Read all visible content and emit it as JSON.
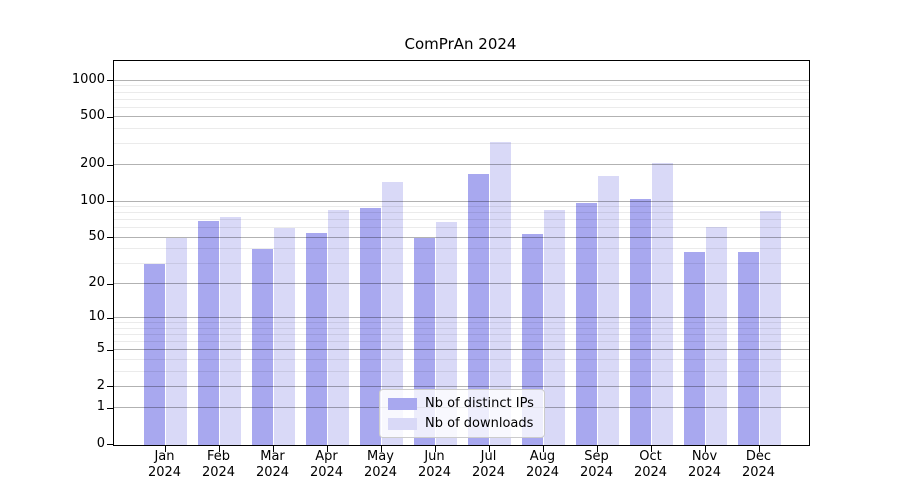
{
  "title": "ComPrAn 2024",
  "chart_data": {
    "type": "bar",
    "title": "ComPrAn 2024",
    "categories": [
      "Jan",
      "Feb",
      "Mar",
      "Apr",
      "May",
      "Jun",
      "Jul",
      "Aug",
      "Sep",
      "Oct",
      "Nov",
      "Dec"
    ],
    "year": "2024",
    "series": [
      {
        "name": "Nb of distinct IPs",
        "color": "#a8a8ef",
        "values": [
          30,
          69,
          40,
          55,
          88,
          50,
          170,
          54,
          98,
          105,
          38,
          38
        ]
      },
      {
        "name": "Nb of downloads",
        "color": "#d9d9f7",
        "values": [
          50,
          75,
          60,
          86,
          145,
          67,
          310,
          85,
          165,
          210,
          62,
          83
        ]
      }
    ],
    "yscale": "log1p",
    "ylim": [
      0,
      1460
    ],
    "yticks": [
      0,
      1,
      2,
      5,
      10,
      20,
      50,
      100,
      200,
      500,
      1000
    ],
    "minor_ticks": [
      3,
      4,
      6,
      7,
      8,
      9,
      30,
      40,
      60,
      70,
      80,
      90,
      300,
      400,
      600,
      700,
      800,
      900
    ],
    "grid": true,
    "legend_position": "lower center"
  },
  "legend": {
    "items": [
      {
        "label": "Nb of distinct IPs",
        "color": "#a8a8ef"
      },
      {
        "label": "Nb of downloads",
        "color": "#d9d9f7"
      }
    ]
  },
  "colors": {
    "major_grid": "rgba(0,0,0,0.30)",
    "minor_grid": "rgba(0,0,0,0.08)",
    "spine": "#000000",
    "text": "#000000",
    "background": "#ffffff"
  }
}
